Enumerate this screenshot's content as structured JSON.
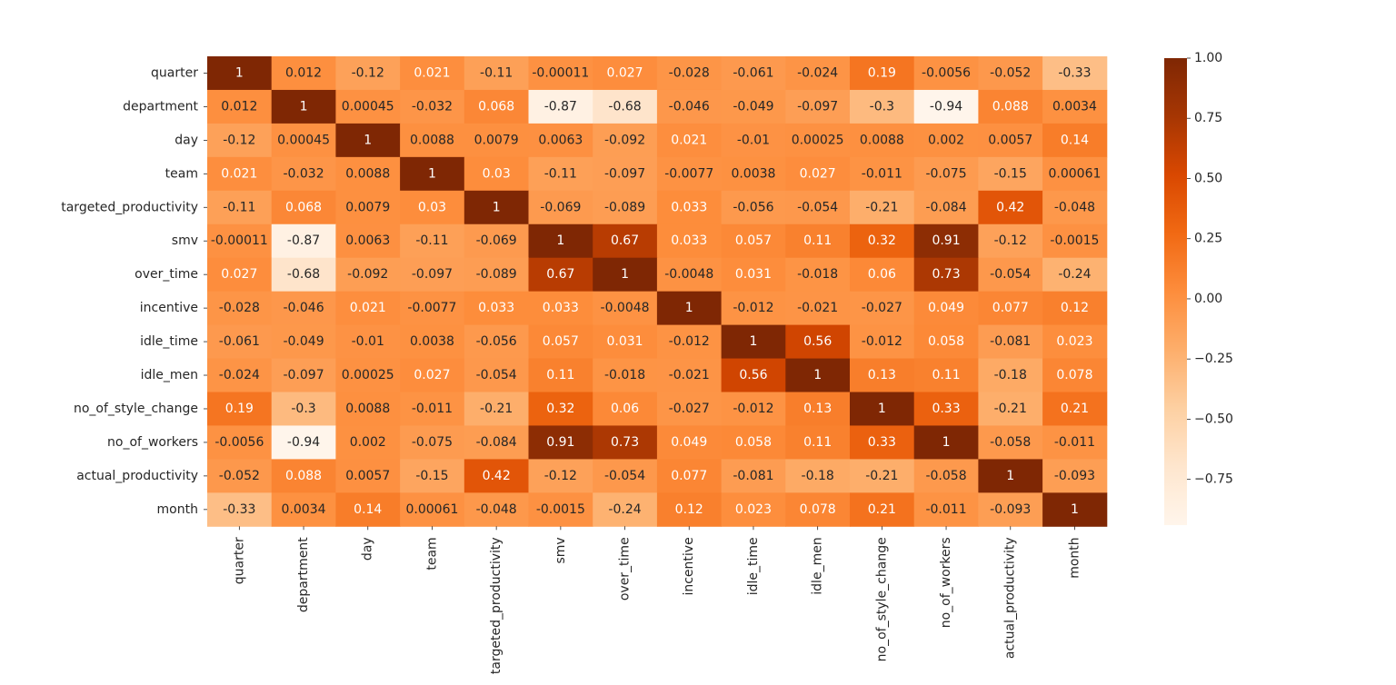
{
  "chart_data": {
    "type": "heatmap",
    "title": "",
    "xlabel": "",
    "ylabel": "",
    "labels": [
      "quarter",
      "department",
      "day",
      "team",
      "targeted_productivity",
      "smv",
      "over_time",
      "incentive",
      "idle_time",
      "idle_men",
      "no_of_style_change",
      "no_of_workers",
      "actual_productivity",
      "month"
    ],
    "matrix": [
      [
        "1",
        "0.012",
        "-0.12",
        "0.021",
        "-0.11",
        "-0.00011",
        "0.027",
        "-0.028",
        "-0.061",
        "-0.024",
        "0.19",
        "-0.0056",
        "-0.052",
        "-0.33"
      ],
      [
        "0.012",
        "1",
        "0.00045",
        "-0.032",
        "0.068",
        "-0.87",
        "-0.68",
        "-0.046",
        "-0.049",
        "-0.097",
        "-0.3",
        "-0.94",
        "0.088",
        "0.0034"
      ],
      [
        "-0.12",
        "0.00045",
        "1",
        "0.0088",
        "0.0079",
        "0.0063",
        "-0.092",
        "0.021",
        "-0.01",
        "0.00025",
        "0.0088",
        "0.002",
        "0.0057",
        "0.14"
      ],
      [
        "0.021",
        "-0.032",
        "0.0088",
        "1",
        "0.03",
        "-0.11",
        "-0.097",
        "-0.0077",
        "0.0038",
        "0.027",
        "-0.011",
        "-0.075",
        "-0.15",
        "0.00061"
      ],
      [
        "-0.11",
        "0.068",
        "0.0079",
        "0.03",
        "1",
        "-0.069",
        "-0.089",
        "0.033",
        "-0.056",
        "-0.054",
        "-0.21",
        "-0.084",
        "0.42",
        "-0.048"
      ],
      [
        "-0.00011",
        "-0.87",
        "0.0063",
        "-0.11",
        "-0.069",
        "1",
        "0.67",
        "0.033",
        "0.057",
        "0.11",
        "0.32",
        "0.91",
        "-0.12",
        "-0.0015"
      ],
      [
        "0.027",
        "-0.68",
        "-0.092",
        "-0.097",
        "-0.089",
        "0.67",
        "1",
        "-0.0048",
        "0.031",
        "-0.018",
        "0.06",
        "0.73",
        "-0.054",
        "-0.24"
      ],
      [
        "-0.028",
        "-0.046",
        "0.021",
        "-0.0077",
        "0.033",
        "0.033",
        "-0.0048",
        "1",
        "-0.012",
        "-0.021",
        "-0.027",
        "0.049",
        "0.077",
        "0.12"
      ],
      [
        "-0.061",
        "-0.049",
        "-0.01",
        "0.0038",
        "-0.056",
        "0.057",
        "0.031",
        "-0.012",
        "1",
        "0.56",
        "-0.012",
        "0.058",
        "-0.081",
        "0.023"
      ],
      [
        "-0.024",
        "-0.097",
        "0.00025",
        "0.027",
        "-0.054",
        "0.11",
        "-0.018",
        "-0.021",
        "0.56",
        "1",
        "0.13",
        "0.11",
        "-0.18",
        "0.078"
      ],
      [
        "0.19",
        "-0.3",
        "0.0088",
        "-0.011",
        "-0.21",
        "0.32",
        "0.06",
        "-0.027",
        "-0.012",
        "0.13",
        "1",
        "0.33",
        "-0.21",
        "0.21"
      ],
      [
        "-0.0056",
        "-0.94",
        "0.002",
        "-0.075",
        "-0.084",
        "0.91",
        "0.73",
        "0.049",
        "0.058",
        "0.11",
        "0.33",
        "1",
        "-0.058",
        "-0.011"
      ],
      [
        "-0.052",
        "0.088",
        "0.0057",
        "-0.15",
        "0.42",
        "-0.12",
        "-0.054",
        "0.077",
        "-0.081",
        "-0.18",
        "-0.21",
        "-0.058",
        "1",
        "-0.093"
      ],
      [
        "-0.33",
        "0.0034",
        "0.14",
        "0.00061",
        "-0.048",
        "-0.0015",
        "-0.24",
        "0.12",
        "0.023",
        "0.078",
        "0.21",
        "-0.011",
        "-0.093",
        "1"
      ]
    ],
    "colorbar": {
      "min": -0.94,
      "max": 1.0,
      "ticks": [
        "1.00",
        "0.75",
        "0.50",
        "0.25",
        "0.00",
        "−0.25",
        "−0.50",
        "−0.75"
      ],
      "tick_values": [
        1.0,
        0.75,
        0.5,
        0.25,
        0.0,
        -0.25,
        -0.5,
        -0.75
      ]
    },
    "colormap": "Oranges",
    "grid": false,
    "legend": "colorbar-right"
  }
}
